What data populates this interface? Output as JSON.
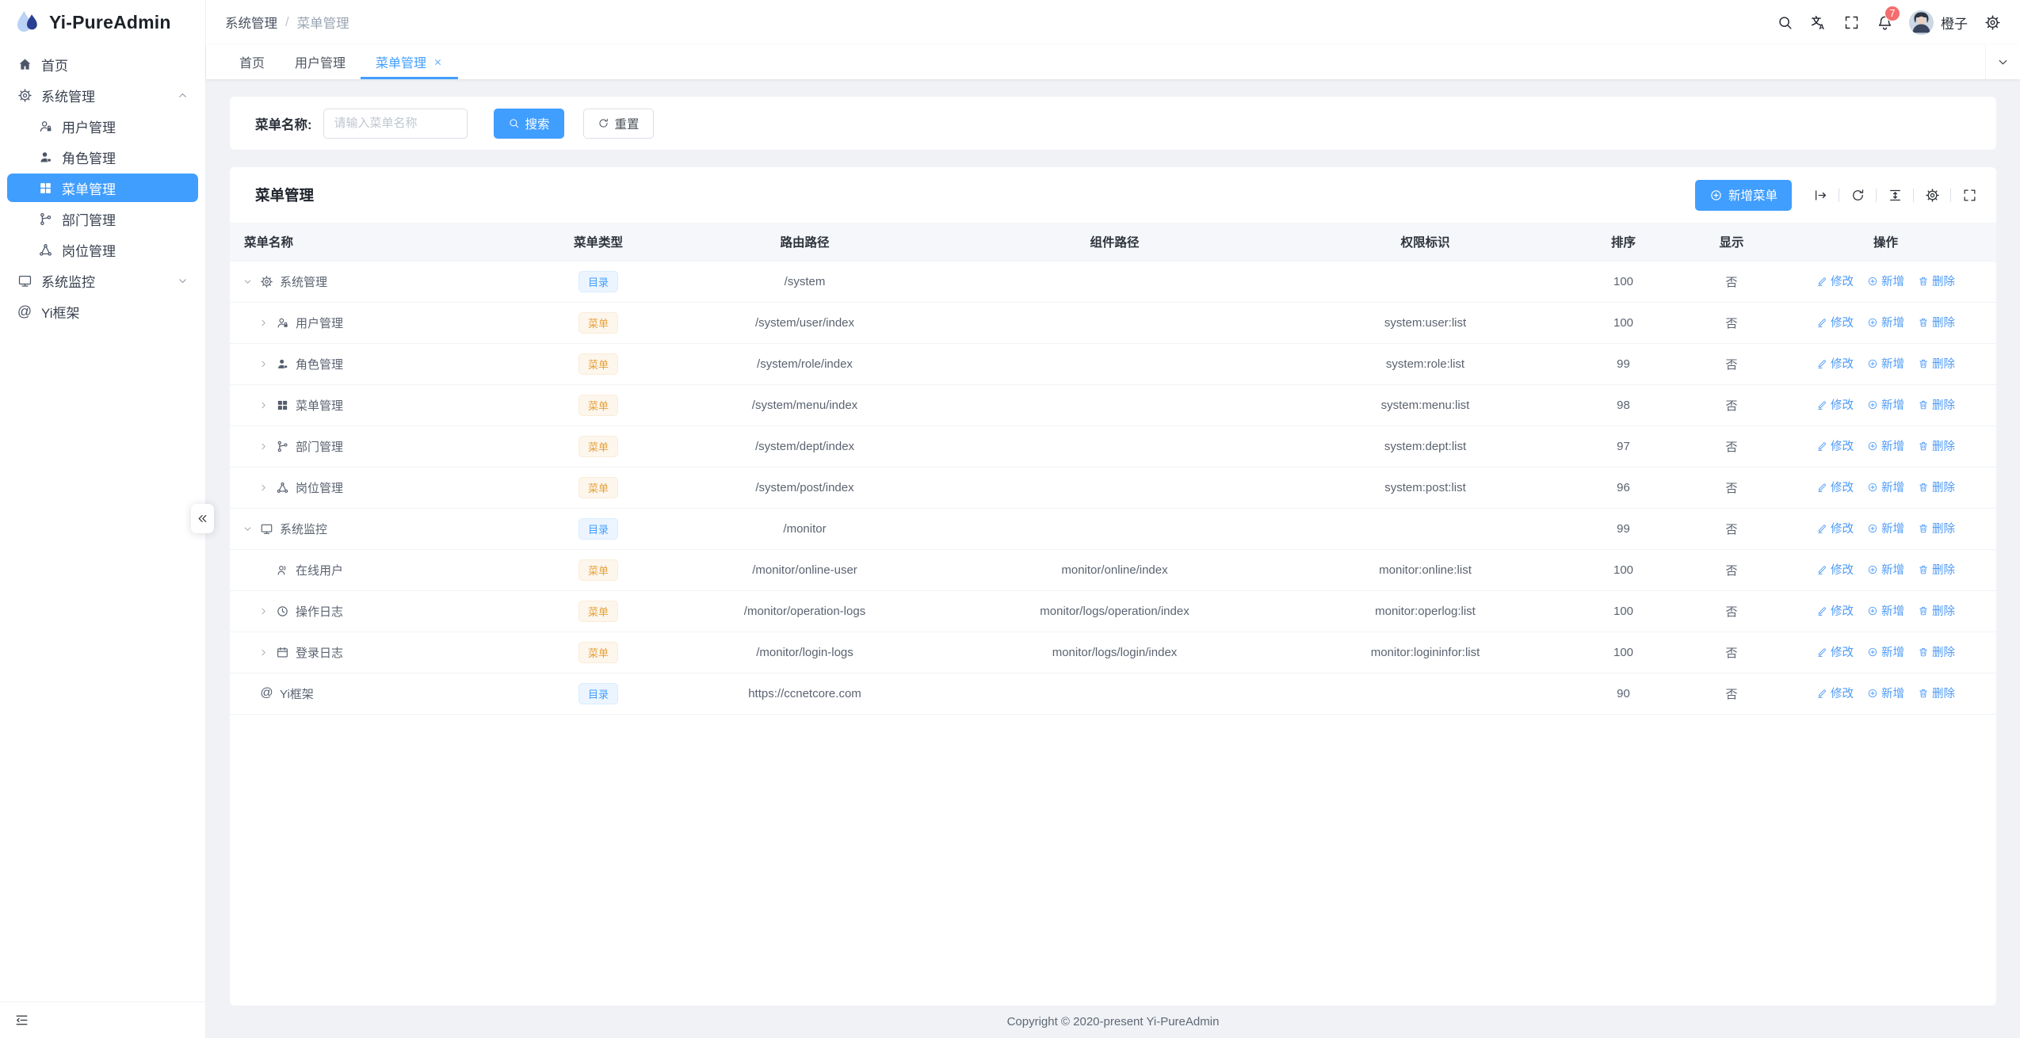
{
  "app": {
    "logo_text": "Yi-PureAdmin",
    "footer_text": "Copyright © 2020-present Yi-PureAdmin"
  },
  "colors": {
    "primary": "#409eff",
    "warning": "#e6a23c",
    "badge_red": "#f56c6c",
    "active_menu_bg": "#409eff"
  },
  "sidebar": {
    "collapse_icon": "double-left",
    "fold_icon": "fold",
    "items": [
      {
        "key": "home",
        "label": "首页",
        "icon": "home",
        "level": 0
      },
      {
        "key": "system",
        "label": "系统管理",
        "icon": "gear",
        "level": 0,
        "state": "expanded",
        "children": [
          {
            "key": "user",
            "label": "用户管理",
            "icon": "user"
          },
          {
            "key": "role",
            "label": "角色管理",
            "icon": "role"
          },
          {
            "key": "menu",
            "label": "菜单管理",
            "icon": "menu-grid",
            "active": true
          },
          {
            "key": "dept",
            "label": "部门管理",
            "icon": "dept"
          },
          {
            "key": "post",
            "label": "岗位管理",
            "icon": "post"
          }
        ]
      },
      {
        "key": "monitor",
        "label": "系统监控",
        "icon": "monitor",
        "level": 0,
        "state": "collapsed",
        "children": []
      },
      {
        "key": "yi",
        "label": "Yi框架",
        "icon": "at",
        "level": 0
      }
    ]
  },
  "header": {
    "breadcrumb": {
      "first": "系统管理",
      "separator": "/",
      "last": "菜单管理"
    },
    "action_icons": [
      "search",
      "translate",
      "fullscreen",
      "bell",
      "gear"
    ],
    "notification_count": "7",
    "username": "橙子"
  },
  "tabs": [
    {
      "label": "首页"
    },
    {
      "label": "用户管理"
    },
    {
      "label": "菜单管理",
      "active": true,
      "closable": true
    }
  ],
  "search_panel": {
    "label": "菜单名称:",
    "input_value": "",
    "placeholder": "请输入菜单名称",
    "search_label": "搜索",
    "reset_label": "重置"
  },
  "table_card": {
    "title": "菜单管理",
    "add_button_label": "新增菜单",
    "toolbar_icons": [
      "expand-right",
      "refresh",
      "density",
      "gear",
      "fullscreen"
    ]
  },
  "table": {
    "columns": [
      "菜单名称",
      "菜单类型",
      "路由路径",
      "组件路径",
      "权限标识",
      "排序",
      "显示",
      "操作"
    ],
    "badge_types": {
      "dir": "目录",
      "menu": "菜单"
    },
    "actions": {
      "edit": "修改",
      "add": "新增",
      "delete": "删除"
    },
    "rows": [
      {
        "name": "系统管理",
        "icon": "gear",
        "level": 0,
        "expand": "open",
        "type": "dir",
        "route": "/system",
        "component": "",
        "perm": "",
        "sort": "100",
        "visible": "否"
      },
      {
        "name": "用户管理",
        "icon": "user",
        "level": 1,
        "expand": "closed",
        "type": "menu",
        "route": "/system/user/index",
        "component": "",
        "perm": "system:user:list",
        "sort": "100",
        "visible": "否"
      },
      {
        "name": "角色管理",
        "icon": "role",
        "level": 1,
        "expand": "closed",
        "type": "menu",
        "route": "/system/role/index",
        "component": "",
        "perm": "system:role:list",
        "sort": "99",
        "visible": "否"
      },
      {
        "name": "菜单管理",
        "icon": "menu-grid",
        "level": 1,
        "expand": "closed",
        "type": "menu",
        "route": "/system/menu/index",
        "component": "",
        "perm": "system:menu:list",
        "sort": "98",
        "visible": "否"
      },
      {
        "name": "部门管理",
        "icon": "dept",
        "level": 1,
        "expand": "closed",
        "type": "menu",
        "route": "/system/dept/index",
        "component": "",
        "perm": "system:dept:list",
        "sort": "97",
        "visible": "否"
      },
      {
        "name": "岗位管理",
        "icon": "post",
        "level": 1,
        "expand": "closed",
        "type": "menu",
        "route": "/system/post/index",
        "component": "",
        "perm": "system:post:list",
        "sort": "96",
        "visible": "否"
      },
      {
        "name": "系统监控",
        "icon": "monitor",
        "level": 0,
        "expand": "open",
        "type": "dir",
        "route": "/monitor",
        "component": "",
        "perm": "",
        "sort": "99",
        "visible": "否"
      },
      {
        "name": "在线用户",
        "icon": "online",
        "level": 1,
        "expand": "none",
        "type": "menu",
        "route": "/monitor/online-user",
        "component": "monitor/online/index",
        "perm": "monitor:online:list",
        "sort": "100",
        "visible": "否"
      },
      {
        "name": "操作日志",
        "icon": "clock",
        "level": 1,
        "expand": "closed",
        "type": "menu",
        "route": "/monitor/operation-logs",
        "component": "monitor/logs/operation/index",
        "perm": "monitor:operlog:list",
        "sort": "100",
        "visible": "否"
      },
      {
        "name": "登录日志",
        "icon": "calendar",
        "level": 1,
        "expand": "closed",
        "type": "menu",
        "route": "/monitor/login-logs",
        "component": "monitor/logs/login/index",
        "perm": "monitor:logininfor:list",
        "sort": "100",
        "visible": "否"
      },
      {
        "name": "Yi框架",
        "icon": "at",
        "level": 0,
        "expand": "none",
        "type": "dir",
        "route": "https://ccnetcore.com",
        "component": "",
        "perm": "",
        "sort": "90",
        "visible": "否"
      }
    ]
  }
}
